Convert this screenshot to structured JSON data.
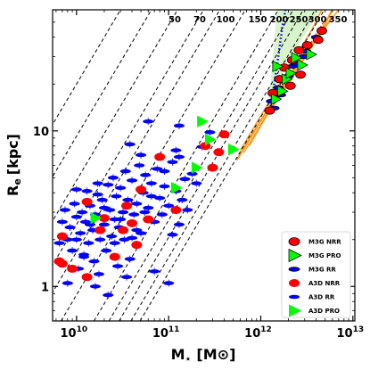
{
  "chart_data": {
    "type": "scatter",
    "title": "",
    "xlabel": "M⋆ [M⊙]",
    "xlabel_main": "M",
    "xlabel_sub": "⋆",
    "xlabel_unit": "[M⊙]",
    "ylabel": "Re [kpc]",
    "ylabel_main": "R",
    "ylabel_sub": "e",
    "ylabel_unit": "[kpc]",
    "x_scale": "log",
    "y_scale": "log",
    "xlim": [
      5500000000.0,
      10500000000000.0
    ],
    "ylim": [
      0.6,
      60
    ],
    "x_ticks": [
      {
        "value": 10000000000.0,
        "base": "10",
        "exp": "10"
      },
      {
        "value": 100000000000.0,
        "base": "10",
        "exp": "11"
      },
      {
        "value": 1000000000000.0,
        "base": "10",
        "exp": "12"
      },
      {
        "value": 10000000000000.0,
        "base": "10",
        "exp": "13"
      }
    ],
    "y_ticks": [
      {
        "value": 1,
        "label": "1"
      },
      {
        "value": 10,
        "label": "10"
      }
    ],
    "grid": false,
    "legend_position": "bottom-right",
    "dashed_lines": {
      "description_labels": [
        "50",
        "70",
        "100",
        "150",
        "200",
        "250",
        "300",
        "350"
      ],
      "values": [
        50,
        70,
        100,
        150,
        200,
        250,
        300,
        350
      ]
    },
    "colors": {
      "red": "#ff0000",
      "blue": "#0000ff",
      "green": "#00ff00",
      "orange": "#ff8c00",
      "light_green_band": "#c8f0b4"
    },
    "legend": [
      {
        "label": "M3G NRR",
        "marker": "ellipse",
        "color": "#ff0000",
        "edge": "#000000"
      },
      {
        "label": "M3G PRO",
        "marker": "triangle",
        "color": "#00ff00",
        "edge": "#000000"
      },
      {
        "label": "M3G RR",
        "marker": "ellipse-small",
        "color": "#0000ff",
        "edge": "#000000"
      },
      {
        "label": "A3D NRR",
        "marker": "ellipse",
        "color": "#ff0000",
        "edge": "none"
      },
      {
        "label": "A3D RR",
        "marker": "ellipse-small",
        "color": "#0000ff",
        "edge": "none"
      },
      {
        "label": "A3D PRO",
        "marker": "triangle",
        "color": "#00ff00",
        "edge": "none"
      }
    ],
    "series": [
      {
        "name": "M3G NRR",
        "points": [
          [
            1250000000000.0,
            13.5
          ],
          [
            1350000000000.0,
            17.5
          ],
          [
            1600000000000.0,
            21.5
          ],
          [
            1800000000000.0,
            25.5
          ],
          [
            2200000000000.0,
            28.5
          ],
          [
            2600000000000.0,
            33.0
          ],
          [
            3200000000000.0,
            35.5
          ],
          [
            4200000000000.0,
            38.5
          ],
          [
            4600000000000.0,
            44.0
          ],
          [
            2100000000000.0,
            19.5
          ],
          [
            2700000000000.0,
            23.0
          ]
        ]
      },
      {
        "name": "M3G PRO",
        "points": [
          [
            1500000000000.0,
            26.0
          ],
          [
            1900000000000.0,
            21.5
          ],
          [
            2100000000000.0,
            23.5
          ],
          [
            2400000000000.0,
            29.5
          ],
          [
            2800000000000.0,
            26.5
          ],
          [
            1700000000000.0,
            18.0
          ],
          [
            1450000000000.0,
            16.0
          ],
          [
            3500000000000.0,
            31.0
          ]
        ]
      },
      {
        "name": "M3G RR",
        "points": [
          [
            1300000000000.0,
            15.5
          ],
          [
            1550000000000.0,
            19.0
          ],
          [
            1750000000000.0,
            21.0
          ],
          [
            2000000000000.0,
            22.5
          ],
          [
            2200000000000.0,
            26.0
          ],
          [
            2500000000000.0,
            27.0
          ],
          [
            2900000000000.0,
            30.0
          ],
          [
            3100000000000.0,
            32.5
          ],
          [
            1400000000000.0,
            14.0
          ],
          [
            1650000000000.0,
            17.0
          ],
          [
            4000000000000.0,
            40.0
          ]
        ]
      },
      {
        "name": "A3D NRR",
        "points": [
          [
            6500000000.0,
            1.45
          ],
          [
            7000000000.0,
            2.1
          ],
          [
            9000000000.0,
            1.3
          ],
          [
            13000000000.0,
            3.5
          ],
          [
            18000000000.0,
            2.3
          ],
          [
            26000000000.0,
            1.55
          ],
          [
            32000000000.0,
            2.3
          ],
          [
            40000000000.0,
            2.55
          ],
          [
            45000000000.0,
            1.85
          ],
          [
            120000000000.0,
            3.1
          ],
          [
            250000000000.0,
            8.0
          ],
          [
            300000000000.0,
            5.8
          ],
          [
            350000000000.0,
            7.3
          ],
          [
            400000000000.0,
            9.5
          ],
          [
            50000000000.0,
            4.2
          ],
          [
            80000000000.0,
            6.8
          ],
          [
            13000000000.0,
            1.15
          ],
          [
            20000000000.0,
            2.75
          ],
          [
            35000000000.0,
            3.3
          ],
          [
            60000000000.0,
            2.7
          ],
          [
            7000000000.0,
            1.4
          ]
        ]
      },
      {
        "name": "A3D RR",
        "points": [
          [
            6500000000.0,
            1.9
          ],
          [
            7000000000.0,
            2.6
          ],
          [
            7500000000.0,
            3.1
          ],
          [
            8000000000.0,
            2.0
          ],
          [
            8500000000.0,
            2.4
          ],
          [
            9000000000.0,
            1.7
          ],
          [
            9500000000.0,
            3.4
          ],
          [
            10000000000.0,
            2.8
          ],
          [
            10500000000.0,
            1.3
          ],
          [
            11000000000.0,
            2.2
          ],
          [
            11500000000.0,
            3.0
          ],
          [
            12000000000.0,
            1.6
          ],
          [
            12500000000.0,
            2.6
          ],
          [
            13000000000.0,
            4.1
          ],
          [
            13500000000.0,
            1.9
          ],
          [
            14000000000.0,
            3.3
          ],
          [
            15000000000.0,
            2.3
          ],
          [
            15500000000.0,
            1.45
          ],
          [
            16000000000.0,
            2.9
          ],
          [
            17000000000.0,
            3.9
          ],
          [
            17500000000.0,
            1.2
          ],
          [
            18000000000.0,
            2.0
          ],
          [
            19000000000.0,
            3.6
          ],
          [
            20000000000.0,
            2.5
          ],
          [
            21000000000.0,
            1.7
          ],
          [
            22000000000.0,
            4.5
          ],
          [
            23000000000.0,
            3.1
          ],
          [
            24000000000.0,
            2.1
          ],
          [
            25000000000.0,
            5.0
          ],
          [
            26000000000.0,
            2.7
          ],
          [
            27000000000.0,
            3.8
          ],
          [
            28000000000.0,
            1.35
          ],
          [
            29000000000.0,
            2.4
          ],
          [
            30000000000.0,
            4.3
          ],
          [
            32000000000.0,
            3.0
          ],
          [
            33000000000.0,
            2.0
          ],
          [
            34000000000.0,
            5.5
          ],
          [
            36000000000.0,
            3.6
          ],
          [
            38000000000.0,
            1.5
          ],
          [
            40000000000.0,
            4.8
          ],
          [
            42000000000.0,
            2.9
          ],
          [
            45000000000.0,
            3.4
          ],
          [
            48000000000.0,
            6.0
          ],
          [
            50000000000.0,
            2.2
          ],
          [
            53000000000.0,
            4.0
          ],
          [
            56000000000.0,
            5.2
          ],
          [
            60000000000.0,
            3.2
          ],
          [
            65000000000.0,
            4.6
          ],
          [
            70000000000.0,
            2.6
          ],
          [
            75000000000.0,
            5.7
          ],
          [
            80000000000.0,
            3.7
          ],
          [
            85000000000.0,
            2.9
          ],
          [
            90000000000.0,
            4.4
          ],
          [
            100000000000.0,
            3.3
          ],
          [
            110000000000.0,
            6.3
          ],
          [
            120000000000.0,
            4.1
          ],
          [
            130000000000.0,
            2.5
          ],
          [
            150000000000.0,
            4.9
          ],
          [
            160000000000.0,
            3.1
          ],
          [
            120000000000.0,
            7.5
          ],
          [
            70000000000.0,
            1.25
          ],
          [
            100000000000.0,
            1.05
          ],
          [
            16000000000.0,
            1.0
          ],
          [
            22000000000.0,
            0.88
          ],
          [
            35000000000.0,
            1.15
          ],
          [
            10000000000.0,
            2.0
          ],
          [
            14000000000.0,
            2.5
          ],
          [
            20000000000.0,
            3.2
          ],
          [
            30000000000.0,
            2.7
          ],
          [
            45000000000.0,
            2.3
          ],
          [
            65000000000.0,
            3.8
          ],
          [
            90000000000.0,
            5.5
          ],
          [
            130000000000.0,
            6.8
          ],
          [
            180000000000.0,
            5.3
          ],
          [
            230000000000.0,
            7.9
          ],
          [
            280000000000.0,
            9.8
          ],
          [
            50000000000.0,
            7.0
          ],
          [
            38000000000.0,
            8.2
          ],
          [
            60000000000.0,
            11.5
          ],
          [
            130000000000.0,
            10.8
          ],
          [
            8000000000.0,
            1.05
          ],
          [
            12000000000.0,
            1.55
          ],
          [
            26000000000.0,
            1.9
          ],
          [
            40000000000.0,
            2.05
          ],
          [
            55000000000.0,
            3.0
          ],
          [
            110000000000.0,
            2.15
          ],
          [
            140000000000.0,
            3.6
          ],
          [
            200000000000.0,
            4.6
          ],
          [
            17000000000.0,
            4.6
          ],
          [
            10000000000.0,
            4.2
          ]
        ]
      },
      {
        "name": "A3D PRO",
        "points": [
          [
            16000000000.0,
            2.75
          ],
          [
            120000000000.0,
            4.3
          ],
          [
            200000000000.0,
            5.8
          ],
          [
            230000000000.0,
            11.5
          ],
          [
            280000000000.0,
            8.8
          ],
          [
            500000000000.0,
            7.6
          ]
        ]
      }
    ]
  }
}
